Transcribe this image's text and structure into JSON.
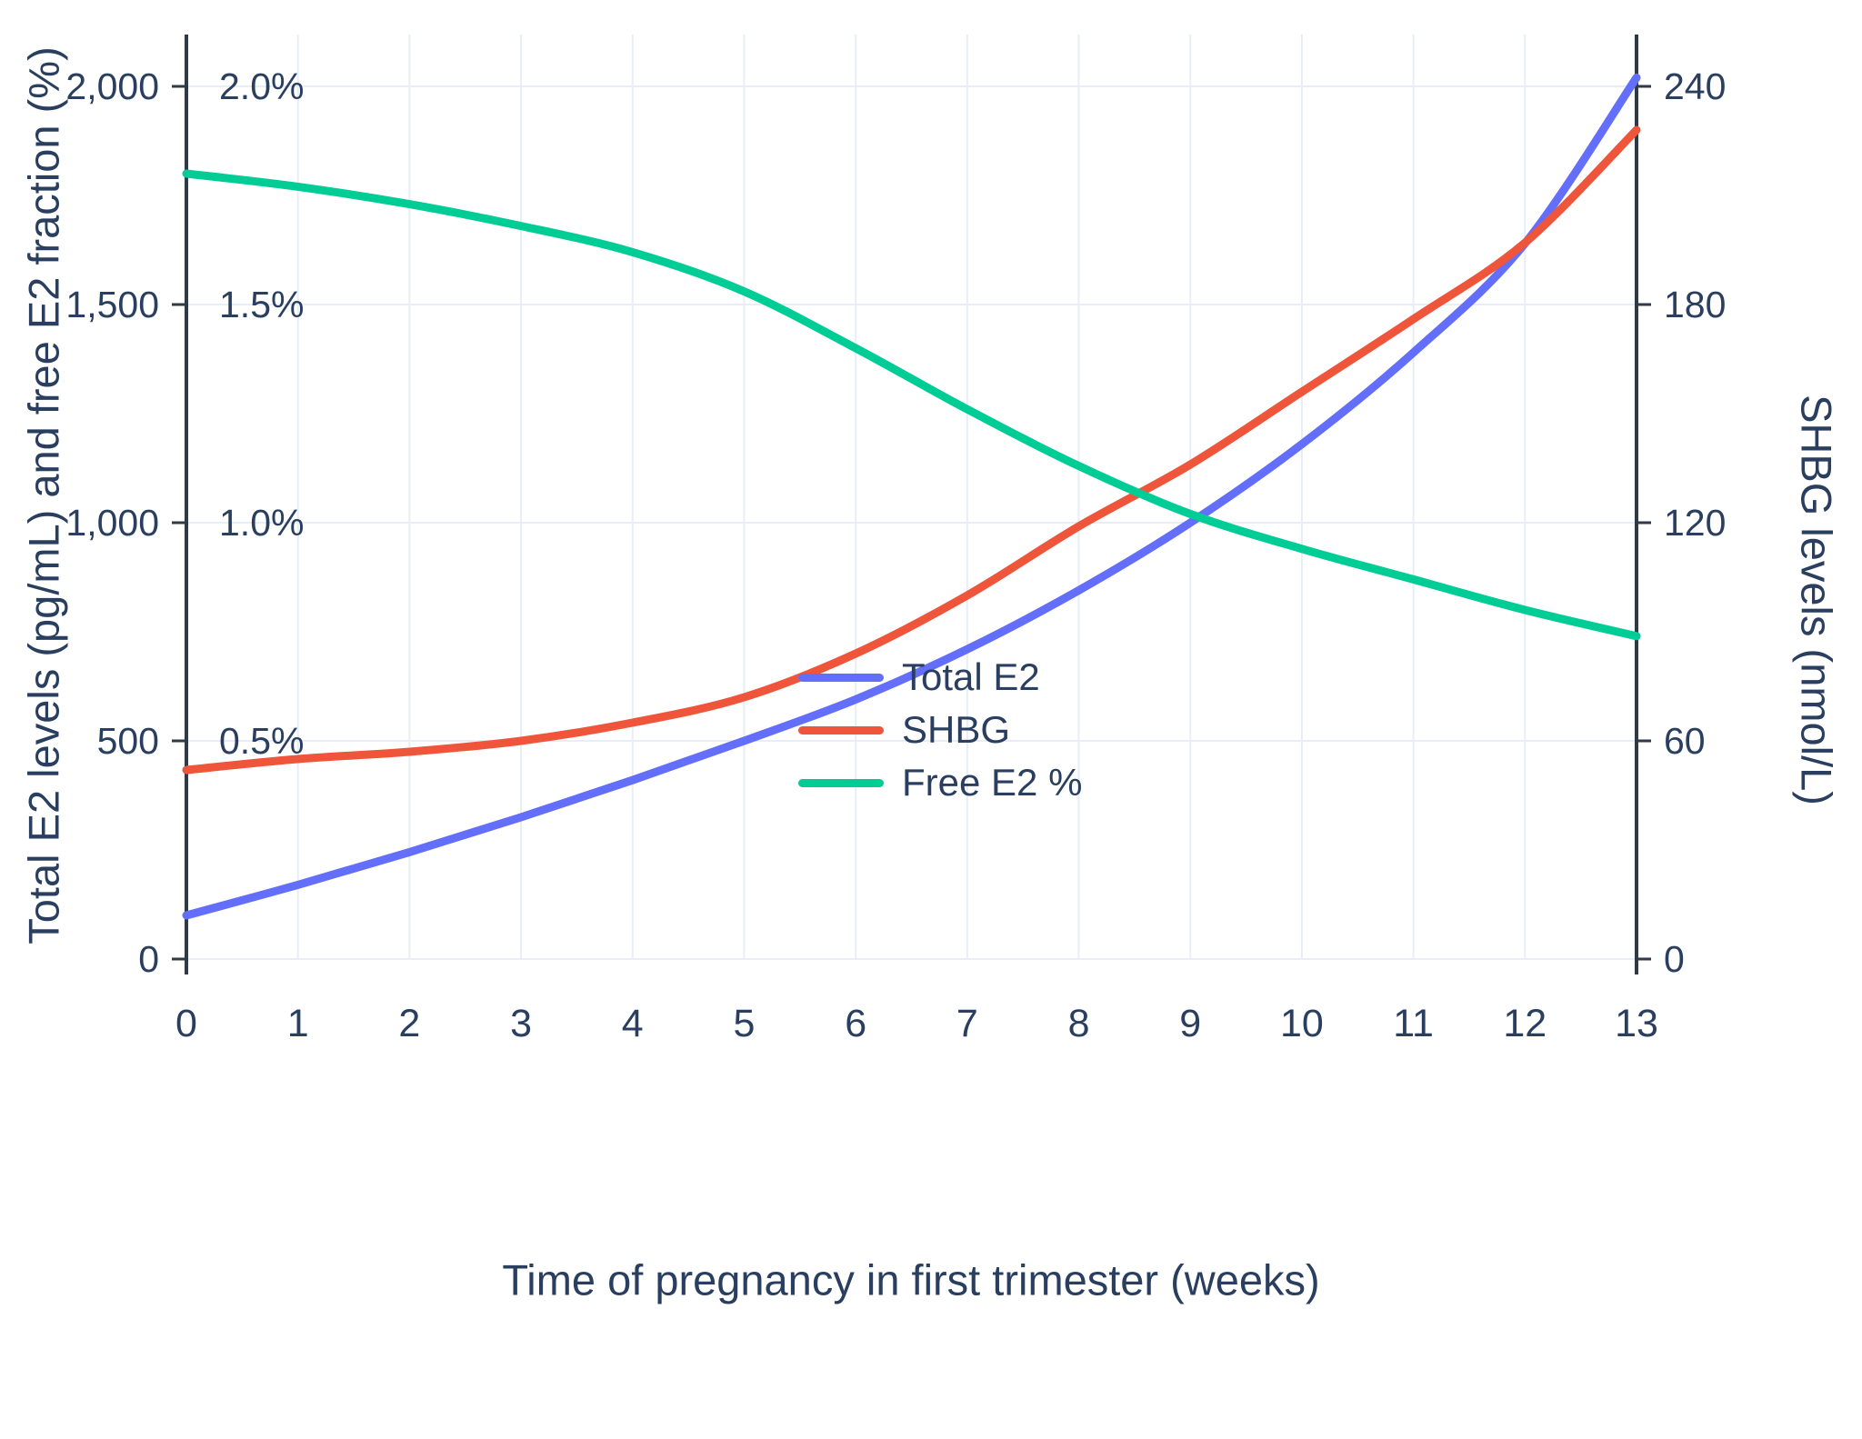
{
  "chart_data": {
    "type": "line",
    "title": "",
    "xlabel": "Time of pregnancy in first trimester (weeks)",
    "ylabel_left": "Total E2 levels (pg/mL) and free E2 fraction (%)",
    "ylabel_right": "SHBG levels (nmol/L)",
    "x": [
      0,
      1,
      2,
      3,
      4,
      5,
      6,
      7,
      8,
      9,
      10,
      11,
      12,
      13
    ],
    "x_tick_labels": [
      "0",
      "1",
      "2",
      "3",
      "4",
      "5",
      "6",
      "7",
      "8",
      "9",
      "10",
      "11",
      "12",
      "13"
    ],
    "left_axis": {
      "ticks": [
        0,
        500,
        1000,
        1500,
        2000
      ],
      "tick_labels": [
        "0",
        "500",
        "1,000",
        "1,500",
        "2,000"
      ],
      "range": [
        0,
        2000
      ]
    },
    "percent_labels": [
      {
        "value": 500,
        "label": "0.5%"
      },
      {
        "value": 1000,
        "label": "1.0%"
      },
      {
        "value": 1500,
        "label": "1.5%"
      },
      {
        "value": 2000,
        "label": "2.0%"
      }
    ],
    "right_axis": {
      "ticks": [
        0,
        60,
        120,
        180,
        240
      ],
      "tick_labels": [
        "0",
        "60",
        "120",
        "180",
        "240"
      ],
      "range": [
        0,
        240
      ]
    },
    "series": [
      {
        "name": "Total E2",
        "axis": "left",
        "color": "#636efa",
        "values": [
          100,
          170,
          245,
          325,
          410,
          500,
          595,
          710,
          845,
          1000,
          1180,
          1390,
          1640,
          2020
        ]
      },
      {
        "name": "SHBG",
        "axis": "right",
        "color": "#ef553b",
        "values": [
          52,
          55,
          57,
          60,
          65,
          72,
          84,
          100,
          119,
          136,
          156,
          176,
          197,
          228
        ]
      },
      {
        "name": "Free E2 %",
        "axis": "percent",
        "color": "#00cc96",
        "values": [
          1.8,
          1.77,
          1.73,
          1.68,
          1.62,
          1.53,
          1.4,
          1.26,
          1.13,
          1.02,
          0.94,
          0.87,
          0.8,
          0.74
        ]
      }
    ],
    "legend": [
      "Total E2",
      "SHBG",
      "Free E2 %"
    ],
    "colors": {
      "grid": "#e8edf6",
      "axis_line": "#2f3a47",
      "text": "#2a3f5f",
      "background": "#ffffff"
    },
    "grid": true,
    "legend_position": "inside-lower-right"
  }
}
